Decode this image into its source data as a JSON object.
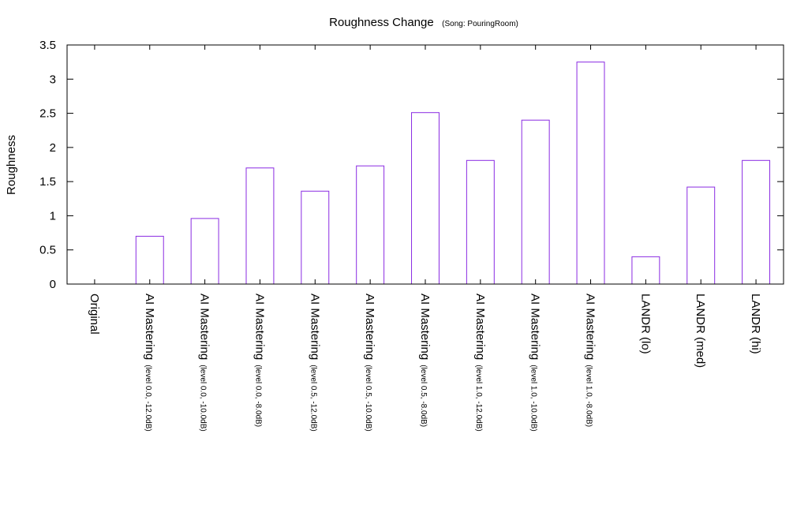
{
  "chart_data": {
    "type": "bar",
    "title": "Roughness Change",
    "subtitle": "(Song: PouringRoom)",
    "xlabel": "",
    "ylabel": "Roughness",
    "ylim": [
      0,
      3.5
    ],
    "yticks": [
      "0",
      "0.5",
      "1",
      "1.5",
      "2",
      "2.5",
      "3",
      "3.5"
    ],
    "grid": false,
    "bar_color": "#8a2be2",
    "categories": [
      {
        "main": "Original",
        "sub": ""
      },
      {
        "main": "AI Mastering",
        "sub": "(level 0.0, -12.0dB)"
      },
      {
        "main": "AI Mastering",
        "sub": "(level 0.0, -10.0dB)"
      },
      {
        "main": "AI Mastering",
        "sub": "(level 0.0, -8.0dB)"
      },
      {
        "main": "AI Mastering",
        "sub": "(level 0.5, -12.0dB)"
      },
      {
        "main": "AI Mastering",
        "sub": "(level 0.5, -10.0dB)"
      },
      {
        "main": "AI Mastering",
        "sub": "(level 0.5, -8.0dB)"
      },
      {
        "main": "AI Mastering",
        "sub": "(level 1.0, -12.0dB)"
      },
      {
        "main": "AI Mastering",
        "sub": "(level 1.0, -10.0dB)"
      },
      {
        "main": "AI Mastering",
        "sub": "(level 1.0, -8.0dB)"
      },
      {
        "main": "LANDR (lo)",
        "sub": ""
      },
      {
        "main": "LANDR (med)",
        "sub": ""
      },
      {
        "main": "LANDR (hi)",
        "sub": ""
      }
    ],
    "values": [
      0,
      0.7,
      0.96,
      1.7,
      1.36,
      1.73,
      2.51,
      1.81,
      2.4,
      3.25,
      0.4,
      1.42,
      1.81
    ]
  }
}
